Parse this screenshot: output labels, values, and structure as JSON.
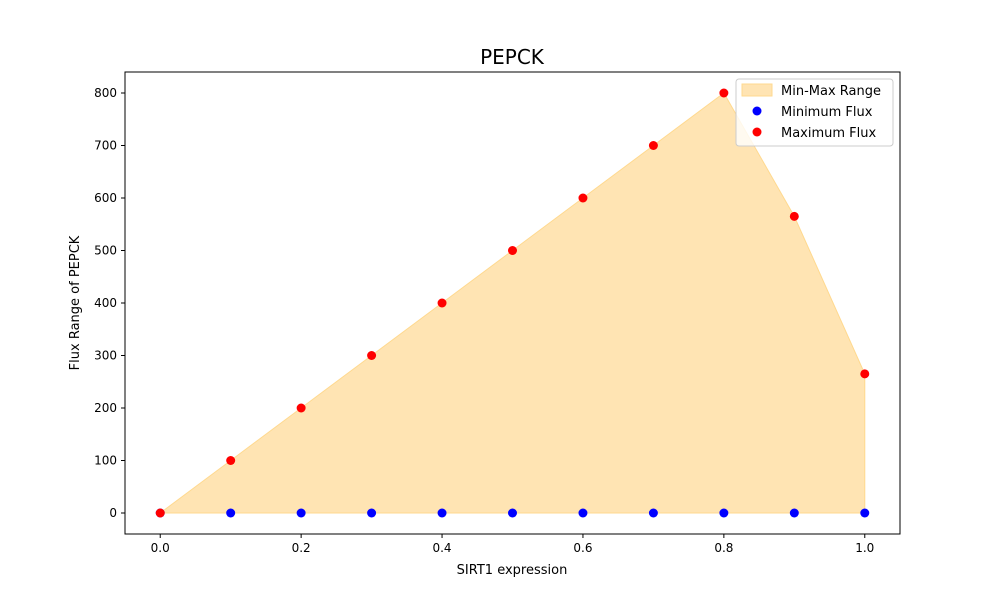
{
  "chart_data": {
    "type": "scatter",
    "title": "PEPCK",
    "xlabel": "SIRT1 expression",
    "ylabel": "Flux Range of PEPCK",
    "xlim": [
      -0.05,
      1.05
    ],
    "ylim": [
      -40,
      840
    ],
    "xticks": [
      0.0,
      0.2,
      0.4,
      0.6,
      0.8,
      1.0
    ],
    "xtick_labels": [
      "0.0",
      "0.2",
      "0.4",
      "0.6",
      "0.8",
      "1.0"
    ],
    "yticks": [
      0,
      100,
      200,
      300,
      400,
      500,
      600,
      700,
      800
    ],
    "ytick_labels": [
      "0",
      "100",
      "200",
      "300",
      "400",
      "500",
      "600",
      "700",
      "800"
    ],
    "grid": false,
    "legend_position": "top-right",
    "x": [
      0.0,
      0.1,
      0.2,
      0.3,
      0.4,
      0.5,
      0.6,
      0.7,
      0.8,
      0.9,
      1.0
    ],
    "series": [
      {
        "name": "Min-Max Range",
        "kind": "fill_between",
        "color": "#ffe4b3",
        "edge_color": "#ffd98f"
      },
      {
        "name": "Minimum Flux",
        "kind": "scatter",
        "color": "#0000ff",
        "values": [
          0,
          0,
          0,
          0,
          0,
          0,
          0,
          0,
          0,
          0,
          0
        ]
      },
      {
        "name": "Maximum Flux",
        "kind": "scatter",
        "color": "#ff0000",
        "values": [
          0,
          100,
          200,
          300,
          400,
          500,
          600,
          700,
          800,
          565,
          265
        ]
      }
    ]
  }
}
